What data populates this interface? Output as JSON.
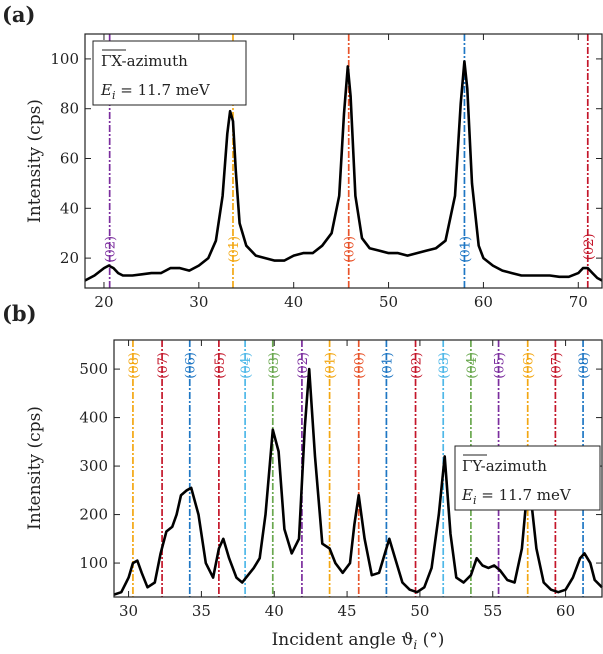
{
  "chart_data": [
    {
      "type": "line",
      "panel_label": "(a)",
      "ylabel": "Intensity (cps)",
      "xlabel": "",
      "xlim": [
        18,
        72.5
      ],
      "ylim": [
        8,
        110
      ],
      "xticks": [
        "20",
        "30",
        "40",
        "50",
        "60",
        "70"
      ],
      "yticks": [
        "20",
        "40",
        "60",
        "80",
        "100"
      ],
      "legend_placement": "top-left",
      "legend": {
        "line1": "ΓX-azimuth",
        "line2": "E",
        "line2_sub": "i",
        "line2_rest": " = 11.7 meV"
      },
      "series": [
        {
          "color": "#000000",
          "x": [
            18,
            19,
            20,
            20.5,
            21,
            21.5,
            22,
            23,
            24,
            25,
            26,
            27,
            28,
            29,
            30,
            31,
            31.8,
            32.5,
            33,
            33.3,
            33.6,
            33.9,
            34.3,
            35,
            36,
            37,
            38,
            39,
            40,
            41,
            42,
            43,
            44,
            44.8,
            45.3,
            45.7,
            46.0,
            46.5,
            47.2,
            48,
            49,
            50,
            51,
            52,
            53,
            54,
            55,
            56,
            57,
            57.6,
            58.0,
            58.3,
            58.8,
            59.5,
            60,
            61,
            62,
            63,
            64,
            65,
            66,
            67,
            68,
            69,
            70,
            70.5,
            71,
            71.5,
            72,
            72.5
          ],
          "y": [
            11,
            13,
            16,
            17,
            16,
            14,
            13,
            13,
            13.5,
            14,
            14,
            16,
            16,
            15,
            17,
            20,
            27,
            45,
            70,
            79,
            75,
            55,
            34,
            25,
            21,
            20,
            19,
            19,
            21,
            22,
            22,
            25,
            30,
            45,
            78,
            97,
            85,
            45,
            28,
            24,
            23,
            22,
            22,
            21,
            22,
            23,
            24,
            27,
            45,
            82,
            99,
            88,
            50,
            25,
            20,
            17,
            15,
            14,
            13,
            13,
            13,
            13,
            12.5,
            12.5,
            14,
            16,
            16,
            14,
            12,
            11
          ]
        }
      ],
      "vlines": [
        {
          "x": 20.6,
          "color": "#7b2d9e",
          "label": "(02)"
        },
        {
          "x": 33.6,
          "color": "#f3a712",
          "label": "(01)"
        },
        {
          "x": 45.8,
          "color": "#e8532a",
          "label": "(00)"
        },
        {
          "x": 58.0,
          "color": "#1f77c4",
          "label": "(01)"
        },
        {
          "x": 71.0,
          "color": "#c4162a",
          "label": "(02)"
        }
      ]
    },
    {
      "type": "line",
      "panel_label": "(b)",
      "ylabel": "Intensity (cps)",
      "xlabel": "Incident angle ϑ",
      "xlabel_sub": "i",
      "xlabel_rest": " (°)",
      "xlim": [
        29,
        62.5
      ],
      "ylim": [
        30,
        560
      ],
      "xticks": [
        "30",
        "35",
        "40",
        "45",
        "50",
        "55",
        "60"
      ],
      "yticks": [
        "100",
        "200",
        "300",
        "400",
        "500"
      ],
      "legend_placement": "right",
      "legend": {
        "line1": "ΓY-azimuth",
        "line2": "E",
        "line2_sub": "i",
        "line2_rest": " = 11.7 meV"
      },
      "series": [
        {
          "color": "#000000",
          "x": [
            29,
            29.5,
            30,
            30.3,
            30.6,
            30.9,
            31.3,
            31.8,
            32.2,
            32.6,
            33,
            33.3,
            33.6,
            34,
            34.3,
            34.8,
            35.3,
            35.8,
            36.2,
            36.5,
            36.9,
            37.4,
            37.8,
            38.2,
            38.6,
            39,
            39.4,
            39.9,
            40.3,
            40.7,
            41.2,
            41.7,
            42.1,
            42.4,
            42.8,
            43.3,
            43.8,
            44.2,
            44.7,
            45.2,
            45.5,
            45.8,
            46.2,
            46.7,
            47.2,
            47.6,
            47.9,
            48.3,
            48.8,
            49.3,
            49.8,
            50.3,
            50.8,
            51.3,
            51.7,
            52.1,
            52.5,
            53,
            53.5,
            53.9,
            54.3,
            54.7,
            55.1,
            55.5,
            56,
            56.5,
            57,
            57.3,
            57.6,
            58,
            58.5,
            59,
            59.5,
            60,
            60.5,
            61,
            61.3,
            61.7,
            62,
            62.5
          ],
          "y": [
            35,
            40,
            70,
            100,
            105,
            80,
            50,
            60,
            120,
            165,
            175,
            200,
            240,
            250,
            255,
            200,
            100,
            70,
            130,
            150,
            110,
            70,
            60,
            75,
            90,
            110,
            200,
            375,
            330,
            170,
            120,
            150,
            380,
            500,
            320,
            140,
            130,
            100,
            80,
            100,
            180,
            240,
            150,
            75,
            80,
            120,
            150,
            110,
            60,
            45,
            40,
            50,
            90,
            200,
            320,
            160,
            70,
            60,
            75,
            110,
            95,
            90,
            95,
            85,
            65,
            60,
            130,
            230,
            240,
            130,
            60,
            45,
            40,
            45,
            70,
            110,
            120,
            100,
            65,
            50
          ]
        }
      ],
      "vlines": [
        {
          "x": 30.3,
          "color": "#f3a712",
          "label": "(08)"
        },
        {
          "x": 32.3,
          "color": "#c4162a",
          "label": "(07)"
        },
        {
          "x": 34.2,
          "color": "#1f77c4",
          "label": "(06)"
        },
        {
          "x": 36.2,
          "color": "#c4162a",
          "label": "(05)"
        },
        {
          "x": 38.0,
          "color": "#4fb8e8",
          "label": "(04)"
        },
        {
          "x": 39.9,
          "color": "#6aa84f",
          "label": "(03)"
        },
        {
          "x": 41.9,
          "color": "#7b2d9e",
          "label": "(02)"
        },
        {
          "x": 43.8,
          "color": "#f3a712",
          "label": "(01)"
        },
        {
          "x": 45.8,
          "color": "#e8532a",
          "label": "(00)"
        },
        {
          "x": 47.7,
          "color": "#1f77c4",
          "label": "(01)"
        },
        {
          "x": 49.7,
          "color": "#c4162a",
          "label": "(02)"
        },
        {
          "x": 51.6,
          "color": "#4fb8e8",
          "label": "(03)"
        },
        {
          "x": 53.5,
          "color": "#6aa84f",
          "label": "(04)"
        },
        {
          "x": 55.4,
          "color": "#7b2d9e",
          "label": "(05)"
        },
        {
          "x": 57.4,
          "color": "#f3a712",
          "label": "(06)"
        },
        {
          "x": 59.3,
          "color": "#c4162a",
          "label": "(07)"
        },
        {
          "x": 61.2,
          "color": "#1f77c4",
          "label": "(08)"
        }
      ]
    }
  ]
}
